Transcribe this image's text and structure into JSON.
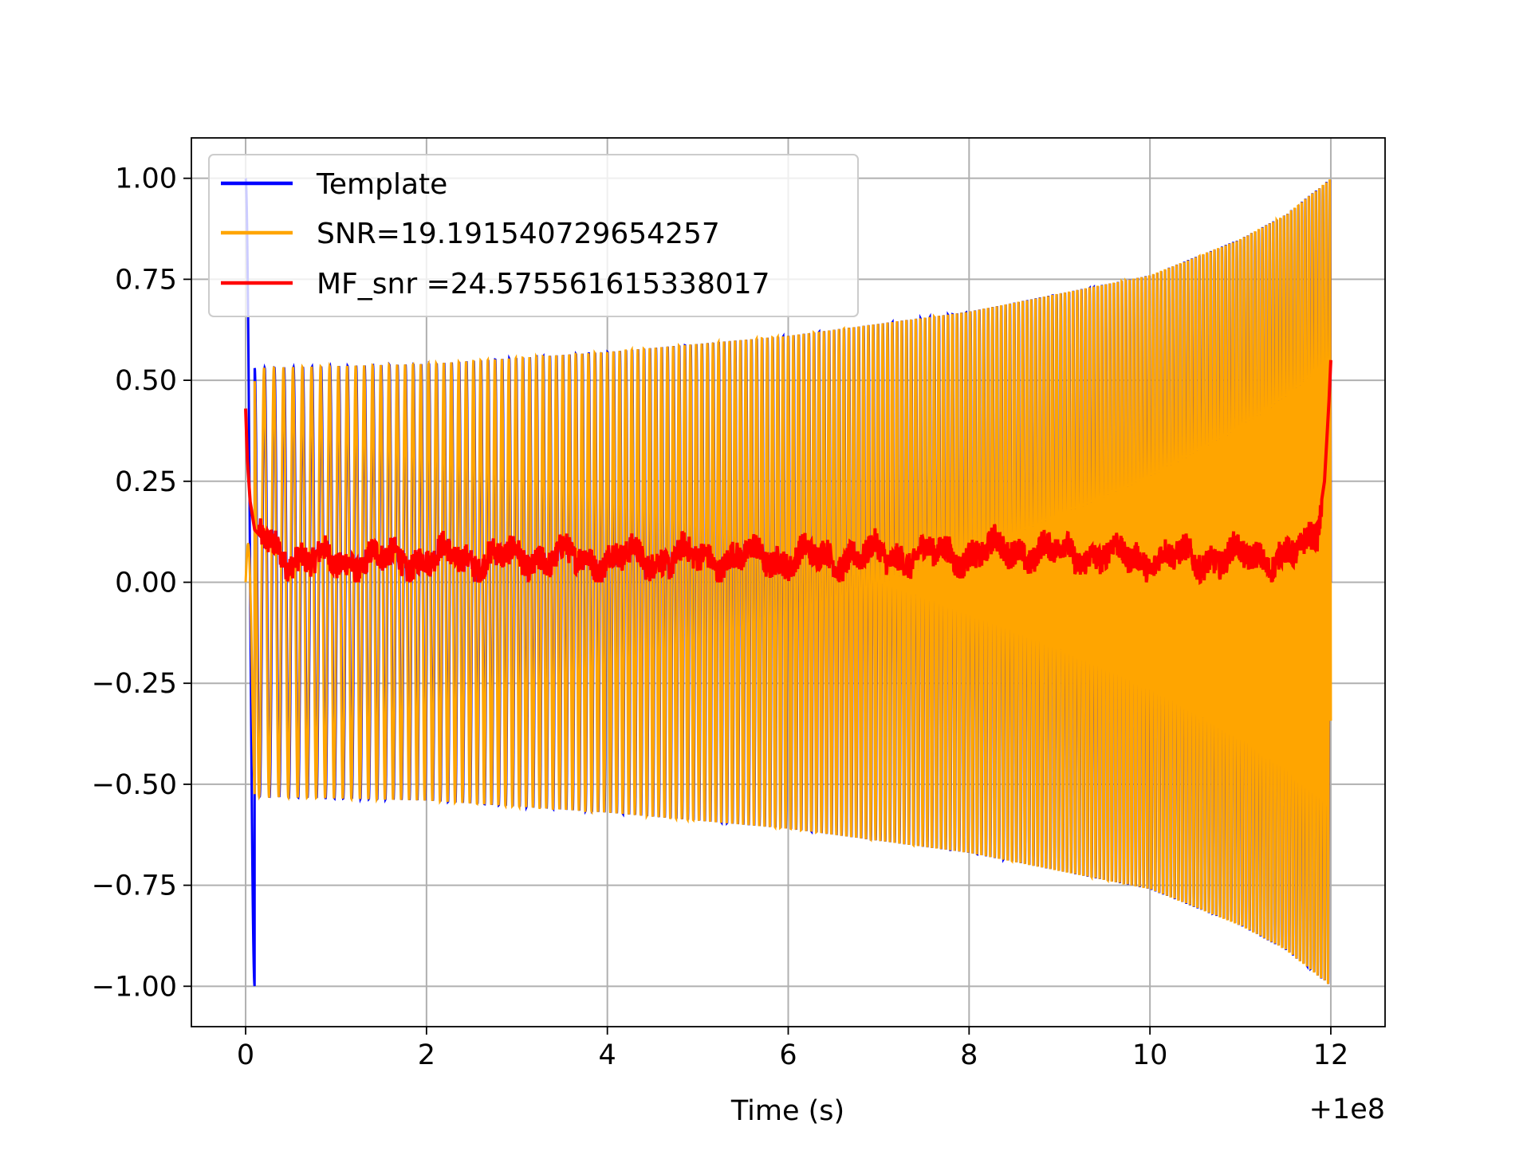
{
  "chart_data": {
    "type": "line",
    "xlabel": "Time (s)",
    "ylabel": "",
    "x_offset_label": "+1e8",
    "xlim": [
      -0.6,
      12.6
    ],
    "ylim": [
      -1.1,
      1.1
    ],
    "xticks": [
      0,
      2,
      4,
      6,
      8,
      10,
      12
    ],
    "xtick_labels": [
      "0",
      "2",
      "4",
      "6",
      "8",
      "10",
      "12"
    ],
    "yticks": [
      1.0,
      0.75,
      0.5,
      0.25,
      0.0,
      -0.25,
      -0.5,
      -0.75,
      -1.0
    ],
    "ytick_labels": [
      "1.00",
      "0.75",
      "0.50",
      "0.25",
      "0.00",
      "−0.25",
      "−0.50",
      "−0.75",
      "−1.00"
    ],
    "grid": true,
    "legend_position": "upper-left",
    "series": [
      {
        "name": "Template",
        "color": "#0000ff",
        "description": "Chirp oscillation, amplitude growing ~0.53 to 1.0 over 0-12 s, initial spike to ±1.0 near t=0",
        "envelope": [
          [
            0.1,
            0.53
          ],
          [
            2,
            0.54
          ],
          [
            4,
            0.57
          ],
          [
            6,
            0.61
          ],
          [
            8,
            0.67
          ],
          [
            10,
            0.76
          ],
          [
            11,
            0.85
          ],
          [
            11.5,
            0.91
          ],
          [
            12,
            1.0
          ]
        ]
      },
      {
        "name": "SNR=19.191540729654257",
        "color": "#ffa500",
        "description": "Chirp oscillation overlaying template, same envelope",
        "envelope": [
          [
            0.1,
            0.53
          ],
          [
            2,
            0.54
          ],
          [
            4,
            0.57
          ],
          [
            6,
            0.61
          ],
          [
            8,
            0.67
          ],
          [
            10,
            0.76
          ],
          [
            11,
            0.85
          ],
          [
            11.5,
            0.91
          ],
          [
            12,
            1.0
          ]
        ]
      },
      {
        "name": "MF_snr =24.575561615338017",
        "color": "#ff0000",
        "description": "Matched filter output: ~0.43 at t=0 decaying to noisy floor 0-0.15, rising to ~0.55 at t=12",
        "points": [
          [
            0.0,
            0.43
          ],
          [
            0.02,
            0.3
          ],
          [
            0.05,
            0.2
          ],
          [
            0.1,
            0.13
          ],
          [
            0.3,
            0.08
          ],
          [
            0.8,
            0.05
          ],
          [
            2,
            0.06
          ],
          [
            4,
            0.06
          ],
          [
            6,
            0.06
          ],
          [
            8,
            0.07
          ],
          [
            8.5,
            0.08
          ],
          [
            10,
            0.06
          ],
          [
            11,
            0.06
          ],
          [
            11.7,
            0.07
          ],
          [
            11.85,
            0.13
          ],
          [
            11.93,
            0.25
          ],
          [
            11.98,
            0.45
          ],
          [
            12.0,
            0.55
          ]
        ]
      }
    ]
  }
}
